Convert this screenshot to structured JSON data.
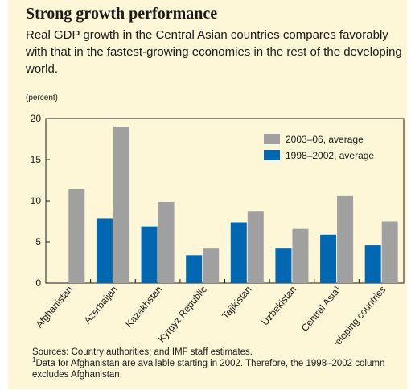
{
  "title": "Strong growth performance",
  "subtitle": "Real GDP growth in the Central Asian countries compares favorably with that in the fastest-growing economies in the rest of the developing world.",
  "unit_label": "(percent)",
  "colors": {
    "background": "#fdf7d8",
    "series_2003_06": "#a0a0a0",
    "series_1998_2002": "#0067b0"
  },
  "chart_data": {
    "type": "bar",
    "categories": [
      "Afghanistan",
      "Azerbaijan",
      "Kazakhstan",
      "Kyrgyz Republic",
      "Tajikistan",
      "Uzbekistan",
      "Central Asia",
      "Developing countries"
    ],
    "category_superscripts": [
      "",
      "",
      "",
      "",
      "",
      "",
      "1",
      ""
    ],
    "series": [
      {
        "name": "1998–2002, average",
        "color": "#0067b0",
        "values": [
          null,
          7.8,
          6.9,
          3.4,
          7.4,
          4.2,
          5.9,
          4.6
        ]
      },
      {
        "name": "2003–06, average",
        "color": "#a0a0a0",
        "values": [
          11.4,
          19.0,
          9.9,
          4.2,
          8.7,
          6.6,
          10.6,
          7.5
        ]
      }
    ],
    "legend_order": [
      "2003–06, average",
      "1998–2002, average"
    ],
    "legend_position": "top-right",
    "yticks": [
      0,
      5,
      10,
      15,
      20
    ],
    "ylim": [
      0,
      20
    ],
    "xlabel": "",
    "ylabel": "(percent)",
    "grid": false
  },
  "footer": {
    "sources": "Sources: Country authorities; and IMF staff estimates.",
    "note_marker": "1",
    "note": "Data for Afghanistan are available starting in 2002. Therefore, the 1998–2002 column excludes Afghanistan."
  }
}
